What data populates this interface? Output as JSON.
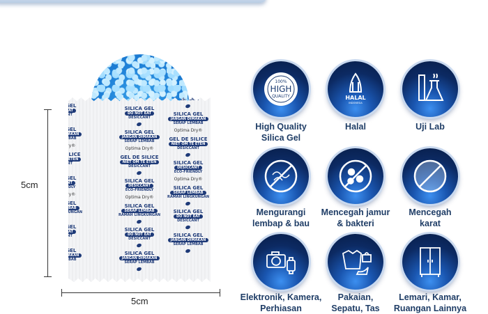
{
  "dimensions": {
    "height_label": "5cm",
    "width_label": "5cm"
  },
  "packet": {
    "blocks": [
      {
        "title": "SILICA GEL",
        "pill": "DO NOT EAT",
        "sub": "DESICCANT",
        "extra": ""
      },
      {
        "title": "SILICA GEL",
        "pill": "JANGAN DIMAKAN",
        "sub": "SERAP LEMBAB",
        "extra": "Optima Dry®"
      },
      {
        "title": "GEL DE SILICE",
        "pill": "NIET OM TE ETEN",
        "sub": "DESICCANT",
        "extra": ""
      },
      {
        "title": "SILICA GEL",
        "pill": "DESICCANT",
        "sub": "ECO-FRIENDLY",
        "extra": "Optima Dry®"
      },
      {
        "title": "SILICA GEL",
        "pill": "SERAP LEMBAB",
        "sub": "RAMAH LINGKUNGAN",
        "extra": ""
      },
      {
        "title": "SILICA GEL",
        "pill": "DO NOT EAT",
        "sub": "DESICCANT",
        "extra": ""
      },
      {
        "title": "SILICA GEL",
        "pill": "JANGAN DIMAKAN",
        "sub": "SERAP LEMBAB",
        "extra": ""
      }
    ]
  },
  "features": [
    {
      "icon": "high-quality-badge-icon",
      "line1": "High Quality",
      "line2": "Silica Gel",
      "badge_top": "100%",
      "badge_mid": "HIGH",
      "badge_bot": "QUALITY"
    },
    {
      "icon": "halal-indonesia-icon",
      "line1": "Halal",
      "line2": "",
      "badge_mid": "HALAL",
      "badge_bot": "INDONESIA"
    },
    {
      "icon": "lab-flask-icon",
      "line1": "Uji Lab",
      "line2": ""
    },
    {
      "icon": "no-moisture-odor-icon",
      "line1": "Mengurangi",
      "line2": "lembap & bau"
    },
    {
      "icon": "no-bacteria-icon",
      "line1": "Mencegah jamur",
      "line2": "& bakteri"
    },
    {
      "icon": "no-rust-icon",
      "line1": "Mencegah",
      "line2": "karat"
    },
    {
      "icon": "camera-watch-icon",
      "line1": "Elektronik, Kamera,",
      "line2": "Perhiasan"
    },
    {
      "icon": "clothes-shoes-bag-icon",
      "line1": "Pakaian,",
      "line2": "Sepatu, Tas"
    },
    {
      "icon": "wardrobe-icon",
      "line1": "Lemari, Kamar,",
      "line2": "Ruangan Lainnya"
    }
  ]
}
